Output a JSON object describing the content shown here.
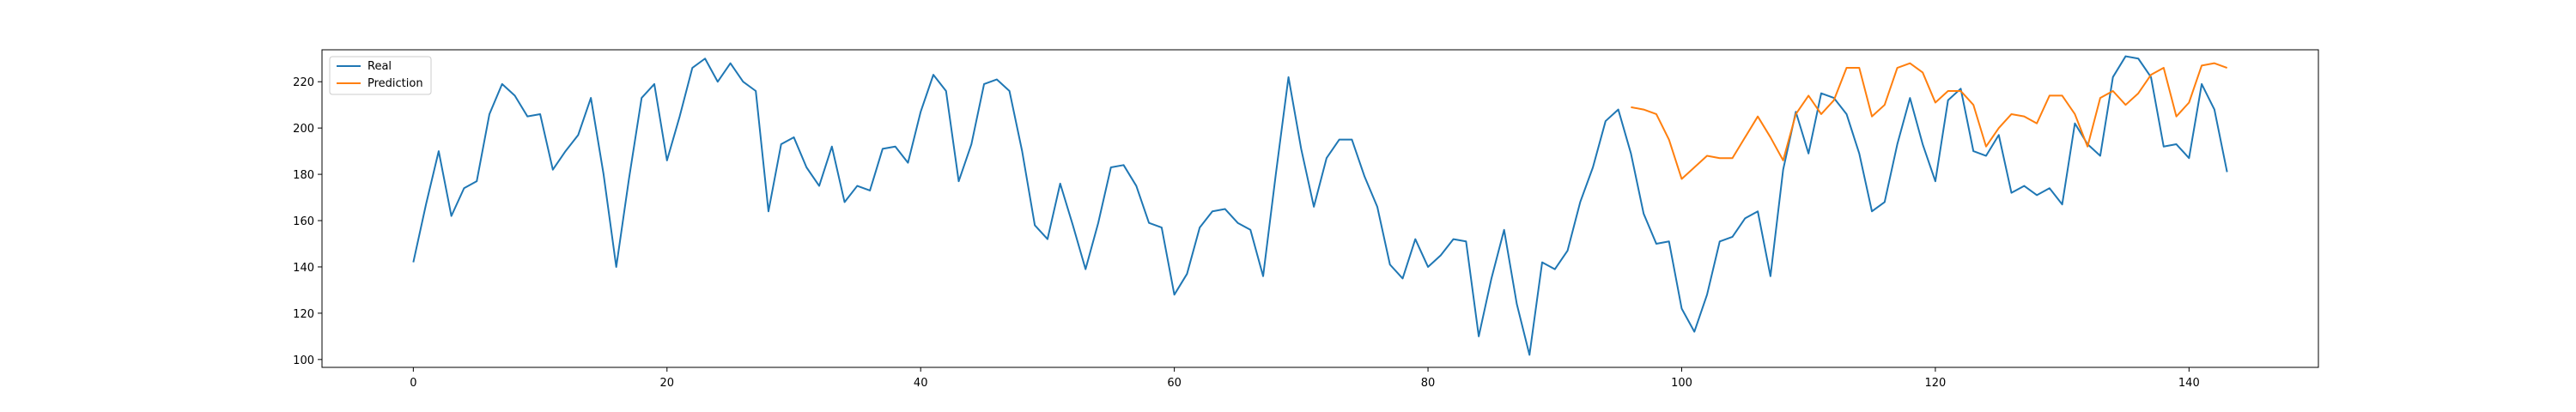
{
  "chart_data": {
    "type": "line",
    "title": "",
    "xlabel": "",
    "ylabel": "",
    "xlim": [
      -7.2,
      150.2
    ],
    "ylim": [
      96.6,
      233.8
    ],
    "xticks": [
      0,
      20,
      40,
      60,
      80,
      100,
      120,
      140
    ],
    "yticks": [
      100,
      120,
      140,
      160,
      180,
      200,
      220
    ],
    "grid": false,
    "legend_position": "top-left",
    "series": [
      {
        "name": "Real",
        "color": "#1f77b4",
        "x_start": 0,
        "values": [
          142,
          167,
          190,
          162,
          174,
          177,
          206,
          219,
          214,
          205,
          206,
          182,
          190,
          197,
          213,
          180,
          140,
          178,
          213,
          219,
          186,
          205,
          226,
          230,
          220,
          228,
          220,
          216,
          164,
          193,
          196,
          183,
          175,
          192,
          168,
          175,
          173,
          191,
          192,
          185,
          207,
          223,
          216,
          177,
          193,
          219,
          221,
          216,
          190,
          158,
          152,
          176,
          158,
          139,
          159,
          183,
          184,
          175,
          159,
          157,
          128,
          137,
          157,
          164,
          165,
          159,
          156,
          136,
          180,
          222,
          191,
          166,
          187,
          195,
          195,
          179,
          166,
          141,
          135,
          152,
          140,
          145,
          152,
          151,
          110,
          135,
          156,
          124,
          102,
          142,
          139,
          147,
          168,
          183,
          203,
          208,
          189,
          163,
          150,
          151,
          122,
          112,
          128,
          151,
          153,
          161,
          164,
          136,
          182,
          207,
          189,
          215,
          213,
          206,
          189,
          164,
          168,
          193,
          213,
          193,
          177,
          212,
          217,
          190,
          188,
          197,
          172,
          175,
          171,
          174,
          167,
          202,
          193,
          188,
          222,
          231,
          230,
          222,
          192,
          193,
          187,
          219,
          208,
          181
        ]
      },
      {
        "name": "Prediction",
        "color": "#ff7f0e",
        "x_start": 96,
        "values": [
          209,
          208,
          206,
          195,
          178,
          183,
          188,
          187,
          187,
          196,
          205,
          196,
          186,
          206,
          214,
          206,
          212,
          226,
          226,
          205,
          210,
          226,
          228,
          224,
          211,
          216,
          216,
          210,
          192,
          200,
          206,
          205,
          202,
          214,
          214,
          206,
          192,
          213,
          216,
          210,
          215,
          223,
          226,
          205,
          211,
          227,
          228,
          226
        ]
      }
    ]
  }
}
